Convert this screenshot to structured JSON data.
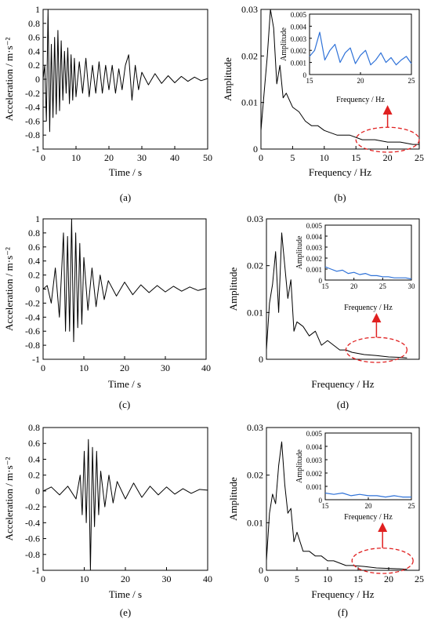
{
  "colors": {
    "series": "#000000",
    "inset_series": "#2f72d8",
    "highlight": "#e02020",
    "axes": "#000000"
  },
  "chart_data": [
    {
      "id": "a",
      "label": "(a)",
      "type": "line",
      "xlabel": "Time / s",
      "ylabel": "Acceleration / m·s⁻²",
      "xlim": [
        0,
        50
      ],
      "ylim": [
        -1,
        1
      ],
      "xticks": [
        0,
        10,
        20,
        30,
        40,
        50
      ],
      "yticks": [
        -1,
        -0.8,
        -0.6,
        -0.4,
        -0.2,
        0,
        0.2,
        0.4,
        0.6,
        0.8,
        1
      ],
      "xtick_labels": [
        "0",
        "10",
        "20",
        "30",
        "40",
        "50"
      ],
      "ytick_labels": [
        "-1",
        "-0.8",
        "-0.6",
        "-0.4",
        "-0.2",
        "0",
        "0.2",
        "0.4",
        "0.6",
        "0.8",
        "1"
      ],
      "x": [
        0,
        0.5,
        1,
        1.5,
        2,
        2.5,
        3,
        3.5,
        4,
        4.5,
        5,
        5.5,
        6,
        6.5,
        7,
        7.5,
        8,
        8.5,
        9,
        9.5,
        10,
        11,
        12,
        13,
        14,
        15,
        16,
        17,
        18,
        19,
        20,
        21,
        22,
        23,
        24,
        25,
        26,
        27,
        28,
        29,
        30,
        32,
        34,
        36,
        38,
        40,
        42,
        44,
        46,
        48,
        50
      ],
      "y": [
        0,
        0.2,
        -0.6,
        1.0,
        -0.75,
        0.5,
        -0.55,
        0.6,
        -0.5,
        0.7,
        -0.45,
        0.55,
        -0.3,
        0.4,
        -0.2,
        0.45,
        -0.35,
        0.35,
        -0.3,
        0.3,
        -0.25,
        0.25,
        -0.2,
        0.3,
        -0.25,
        0.2,
        -0.2,
        0.25,
        -0.2,
        0.2,
        -0.15,
        0.2,
        -0.2,
        0.15,
        -0.15,
        0.2,
        0.35,
        -0.3,
        0.2,
        -0.15,
        0.1,
        -0.08,
        0.08,
        -0.06,
        0.05,
        -0.05,
        0.04,
        -0.03,
        0.03,
        -0.02,
        0.01
      ]
    },
    {
      "id": "b",
      "label": "(b)",
      "type": "line",
      "xlabel": "Frequency / Hz",
      "ylabel": "Amplitude",
      "xlim": [
        0,
        25
      ],
      "ylim": [
        0,
        0.03
      ],
      "xticks": [
        0,
        5,
        10,
        15,
        20,
        25
      ],
      "yticks": [
        0,
        0.01,
        0.02,
        0.03
      ],
      "xtick_labels": [
        "0",
        "5",
        "10",
        "15",
        "20",
        "25"
      ],
      "ytick_labels": [
        "0",
        "0.01",
        "0.02",
        "0.03"
      ],
      "x": [
        0,
        0.5,
        1,
        1.5,
        2,
        2.5,
        3,
        3.5,
        4,
        5,
        6,
        7,
        8,
        9,
        10,
        12,
        14,
        16,
        18,
        20,
        22,
        24,
        25
      ],
      "y": [
        0.004,
        0.012,
        0.02,
        0.03,
        0.026,
        0.014,
        0.018,
        0.011,
        0.012,
        0.009,
        0.008,
        0.006,
        0.005,
        0.005,
        0.004,
        0.003,
        0.003,
        0.002,
        0.002,
        0.0015,
        0.0015,
        0.001,
        0.001
      ],
      "highlight_ellipse": {
        "x_range": [
          15,
          25
        ],
        "y_range": [
          0,
          0.004
        ]
      },
      "inset": {
        "xlabel": "Frequency / Hz",
        "ylabel": "Amplitude",
        "xlim": [
          15,
          25
        ],
        "ylim": [
          0,
          0.005
        ],
        "xticks": [
          15,
          20,
          25
        ],
        "yticks": [
          0,
          0.001,
          0.002,
          0.003,
          0.004,
          0.005
        ],
        "xtick_labels": [
          "15",
          "20",
          "25"
        ],
        "ytick_labels": [
          "0",
          "0.001",
          "0.002",
          "0.003",
          "0.004",
          "0.005"
        ],
        "x": [
          15,
          15.5,
          16,
          16.5,
          17,
          17.5,
          18,
          18.5,
          19,
          19.5,
          20,
          20.5,
          21,
          21.5,
          22,
          22.5,
          23,
          23.5,
          24,
          24.5,
          25
        ],
        "y": [
          0.0015,
          0.002,
          0.0035,
          0.0012,
          0.002,
          0.0025,
          0.001,
          0.0018,
          0.0022,
          0.0009,
          0.0016,
          0.002,
          0.0008,
          0.0012,
          0.0018,
          0.001,
          0.0014,
          0.0008,
          0.0012,
          0.0015,
          0.0009
        ]
      }
    },
    {
      "id": "c",
      "label": "(c)",
      "type": "line",
      "xlabel": "Time / s",
      "ylabel": "Acceleration / m·s⁻²",
      "xlim": [
        0,
        40
      ],
      "ylim": [
        -1,
        1
      ],
      "xticks": [
        0,
        10,
        20,
        30,
        40
      ],
      "yticks": [
        -1,
        -0.8,
        -0.6,
        -0.4,
        -0.2,
        0,
        0.2,
        0.4,
        0.6,
        0.8,
        1
      ],
      "xtick_labels": [
        "0",
        "10",
        "20",
        "30",
        "40"
      ],
      "ytick_labels": [
        "-1",
        "-0.8",
        "-0.6",
        "-0.4",
        "-0.2",
        "0",
        "0.2",
        "0.4",
        "0.6",
        "0.8",
        "1"
      ],
      "x": [
        0,
        1,
        2,
        3,
        4,
        5,
        5.5,
        6,
        6.5,
        7,
        7.5,
        8,
        8.5,
        9,
        9.5,
        10,
        11,
        12,
        13,
        14,
        15,
        16,
        18,
        20,
        22,
        24,
        26,
        28,
        30,
        32,
        34,
        36,
        38,
        40
      ],
      "y": [
        0,
        0.05,
        -0.2,
        0.3,
        -0.4,
        0.8,
        -0.6,
        0.75,
        -0.6,
        1.0,
        -0.75,
        0.8,
        -0.55,
        0.65,
        -0.5,
        0.45,
        -0.3,
        0.3,
        -0.25,
        0.2,
        -0.15,
        0.12,
        -0.1,
        0.1,
        -0.08,
        0.06,
        -0.05,
        0.05,
        -0.04,
        0.04,
        -0.03,
        0.03,
        -0.02,
        0.01
      ]
    },
    {
      "id": "d",
      "label": "(d)",
      "type": "line",
      "xlabel": "Frequency / Hz",
      "ylabel": "Amplitude",
      "xlim": [
        0,
        25
      ],
      "ylim": [
        0,
        0.03
      ],
      "xticks": [],
      "yticks": [
        0,
        0.01,
        0.02,
        0.03
      ],
      "xtick_labels": [],
      "ytick_labels": [
        "0",
        "0.01",
        "0.02",
        "0.03"
      ],
      "x": [
        0,
        0.5,
        1,
        1.5,
        2,
        2.5,
        3,
        3.5,
        4,
        4.5,
        5,
        6,
        7,
        8,
        9,
        10,
        11,
        12,
        13,
        14,
        16,
        18,
        20,
        22,
        23
      ],
      "y": [
        0.002,
        0.012,
        0.016,
        0.023,
        0.01,
        0.027,
        0.02,
        0.013,
        0.017,
        0.006,
        0.008,
        0.007,
        0.005,
        0.006,
        0.003,
        0.004,
        0.003,
        0.002,
        0.002,
        0.0015,
        0.001,
        0.0008,
        0.0005,
        0.0004,
        0.0003
      ],
      "highlight_ellipse": {
        "x_range": [
          13,
          23
        ],
        "y_range": [
          0,
          0.004
        ]
      },
      "inset": {
        "xlabel": "Frequency / Hz",
        "ylabel": "Amplitude",
        "xlim": [
          15,
          30
        ],
        "ylim": [
          0,
          0.005
        ],
        "xticks": [
          15,
          20,
          25,
          30
        ],
        "yticks": [
          0,
          0.001,
          0.002,
          0.003,
          0.004,
          0.005
        ],
        "xtick_labels": [
          "15",
          "20",
          "25",
          "30"
        ],
        "ytick_labels": [
          "0",
          "0.001",
          "0.002",
          "0.003",
          "0.004",
          "0.005"
        ],
        "x": [
          15,
          16,
          17,
          18,
          19,
          20,
          21,
          22,
          23,
          24,
          25,
          26,
          27,
          28,
          29,
          30
        ],
        "y": [
          0.0012,
          0.001,
          0.0008,
          0.0009,
          0.0006,
          0.0007,
          0.0005,
          0.0006,
          0.0004,
          0.0004,
          0.0003,
          0.0003,
          0.0002,
          0.0002,
          0.0002,
          0.0001
        ]
      }
    },
    {
      "id": "e",
      "label": "(e)",
      "type": "line",
      "xlabel": "Time / s",
      "ylabel": "Acceleration / m·s⁻²",
      "xlim": [
        0,
        40
      ],
      "ylim": [
        -1,
        0.8
      ],
      "xticks": [
        0,
        10,
        20,
        30,
        40
      ],
      "yticks": [
        -1,
        -0.8,
        -0.6,
        -0.4,
        -0.2,
        0,
        0.2,
        0.4,
        0.6,
        0.8
      ],
      "xtick_labels": [
        "0",
        "10",
        "20",
        "30",
        "40"
      ],
      "ytick_labels": [
        "-1",
        "-0.8",
        "-0.6",
        "-0.4",
        "-0.2",
        "0",
        "0.2",
        "0.4",
        "0.6",
        "0.8"
      ],
      "x": [
        0,
        2,
        4,
        6,
        8,
        9,
        9.5,
        10,
        10.5,
        11,
        11.5,
        12,
        12.5,
        13,
        13.5,
        14,
        15,
        16,
        17,
        18,
        20,
        22,
        24,
        26,
        28,
        30,
        32,
        34,
        36,
        38,
        40
      ],
      "y": [
        0,
        0.05,
        -0.05,
        0.06,
        -0.1,
        0.2,
        -0.3,
        0.5,
        -0.4,
        0.65,
        -1.0,
        0.55,
        -0.45,
        0.5,
        -0.3,
        0.25,
        -0.2,
        0.2,
        -0.15,
        0.12,
        -0.1,
        0.1,
        -0.08,
        0.06,
        -0.05,
        0.05,
        -0.04,
        0.03,
        -0.03,
        0.02,
        0.01
      ]
    },
    {
      "id": "f",
      "label": "(f)",
      "type": "line",
      "xlabel": "Frequency / Hz",
      "ylabel": "Amplitude",
      "xlim": [
        0,
        25
      ],
      "ylim": [
        0,
        0.03
      ],
      "xticks": [
        0,
        5,
        10,
        15,
        20,
        25
      ],
      "yticks": [
        0,
        0.01,
        0.02,
        0.03
      ],
      "xtick_labels": [
        "0",
        "5",
        "10",
        "15",
        "20",
        "25"
      ],
      "ytick_labels": [
        "0",
        "0.01",
        "0.02",
        "0.03"
      ],
      "x": [
        0,
        0.5,
        1,
        1.5,
        2,
        2.5,
        3,
        3.5,
        4,
        4.5,
        5,
        6,
        7,
        8,
        9,
        10,
        11,
        12,
        13,
        14,
        16,
        18,
        20,
        22,
        23
      ],
      "y": [
        0.002,
        0.012,
        0.016,
        0.014,
        0.022,
        0.027,
        0.018,
        0.012,
        0.013,
        0.006,
        0.008,
        0.004,
        0.004,
        0.003,
        0.003,
        0.002,
        0.002,
        0.0015,
        0.001,
        0.001,
        0.0008,
        0.0005,
        0.0004,
        0.0003,
        0.0002
      ],
      "highlight_ellipse": {
        "x_range": [
          14,
          24
        ],
        "y_range": [
          0,
          0.004
        ]
      },
      "inset": {
        "xlabel": "Frequency / Hz",
        "ylabel": "Amplitude",
        "xlim": [
          15,
          25
        ],
        "ylim": [
          0,
          0.005
        ],
        "xticks": [
          15,
          20,
          25
        ],
        "yticks": [
          0,
          0.001,
          0.002,
          0.003,
          0.004,
          0.005
        ],
        "xtick_labels": [
          "15",
          "20",
          "25"
        ],
        "ytick_labels": [
          "0",
          "0.001",
          "0.002",
          "0.003",
          "0.004",
          "0.005"
        ],
        "x": [
          15,
          16,
          17,
          18,
          19,
          20,
          21,
          22,
          23,
          24,
          25
        ],
        "y": [
          0.0005,
          0.0004,
          0.0005,
          0.0003,
          0.0004,
          0.0003,
          0.0003,
          0.0002,
          0.0003,
          0.0002,
          0.0002
        ]
      }
    }
  ]
}
